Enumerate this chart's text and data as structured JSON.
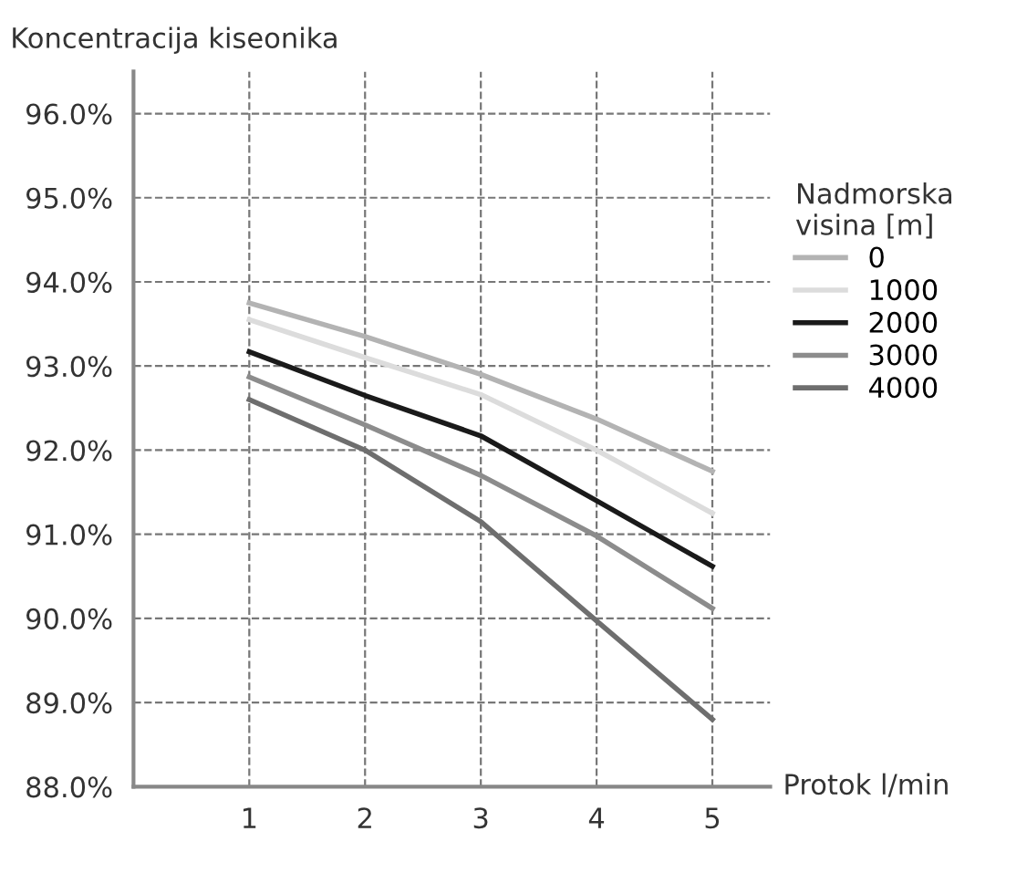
{
  "chart_data": {
    "type": "line",
    "ylabel": "Koncentracija kiseonika",
    "xlabel": "Protok l/min",
    "legend_title": "Nadmorska\nvisina [m]",
    "legend": "right",
    "grid": true,
    "x": [
      1,
      2,
      3,
      4,
      5
    ],
    "xlim": [
      0,
      5.5
    ],
    "xticks": [
      1,
      2,
      3,
      4,
      5
    ],
    "ylim": [
      88,
      96.5
    ],
    "yticks": [
      {
        "value": 88,
        "label": "88.0%"
      },
      {
        "value": 89,
        "label": "89.0%"
      },
      {
        "value": 90,
        "label": "90.0%"
      },
      {
        "value": 91,
        "label": "91.0%"
      },
      {
        "value": 92,
        "label": "92.0%"
      },
      {
        "value": 93,
        "label": "93.0%"
      },
      {
        "value": 94,
        "label": "94.0%"
      },
      {
        "value": 95,
        "label": "95.0%"
      },
      {
        "value": 96,
        "label": "96.0%"
      }
    ],
    "series": [
      {
        "name": "0",
        "color": "#b3b3b3",
        "values": [
          93.75,
          93.35,
          92.9,
          92.37,
          91.75
        ]
      },
      {
        "name": "1000",
        "color": "#dcdcdc",
        "values": [
          93.55,
          93.1,
          92.66,
          92.0,
          91.25
        ]
      },
      {
        "name": "2000",
        "color": "#1a1a1a",
        "values": [
          93.17,
          92.65,
          92.17,
          91.4,
          90.62
        ]
      },
      {
        "name": "3000",
        "color": "#8c8c8c",
        "values": [
          92.87,
          92.3,
          91.7,
          90.98,
          90.12
        ]
      },
      {
        "name": "4000",
        "color": "#6e6e6e",
        "values": [
          92.6,
          92.0,
          91.15,
          89.97,
          88.8
        ]
      }
    ]
  }
}
